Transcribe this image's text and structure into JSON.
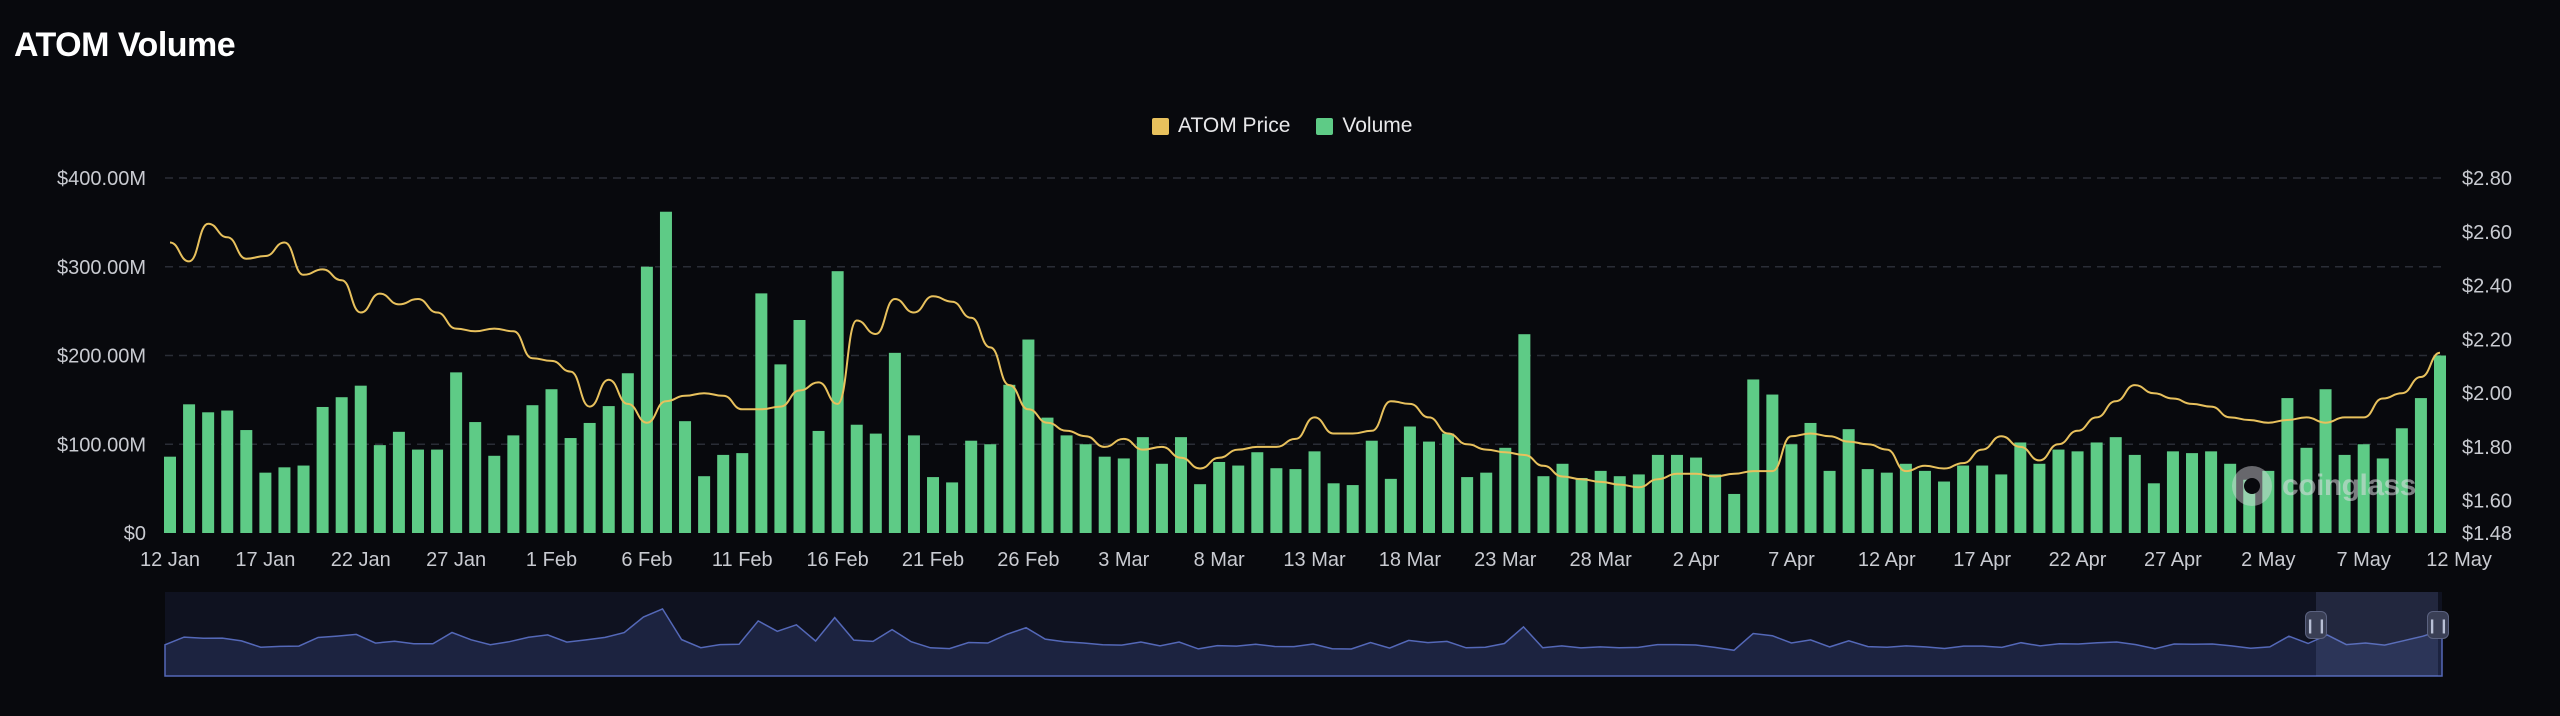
{
  "page": {
    "title": "ATOM Volume"
  },
  "legend": {
    "price": {
      "label": "ATOM Price",
      "color": "#e8c15d"
    },
    "volume": {
      "label": "Volume",
      "color": "#5ecb86"
    }
  },
  "watermark": "coinglass",
  "chart_data": {
    "type": "bar",
    "left_axis": {
      "ticks": [
        "$0",
        "$100.00M",
        "$200.00M",
        "$300.00M",
        "$400.00M"
      ],
      "ylim": [
        0,
        400
      ]
    },
    "right_axis": {
      "ticks": [
        "$1.48",
        "$1.60",
        "$1.80",
        "$2.00",
        "$2.20",
        "$2.40",
        "$2.60",
        "$2.80"
      ],
      "ylim": [
        1.48,
        2.8
      ]
    },
    "x_ticks": [
      "12 Jan",
      "17 Jan",
      "22 Jan",
      "27 Jan",
      "1 Feb",
      "6 Feb",
      "11 Feb",
      "16 Feb",
      "21 Feb",
      "26 Feb",
      "3 Mar",
      "8 Mar",
      "13 Mar",
      "18 Mar",
      "23 Mar",
      "28 Mar",
      "2 Apr",
      "7 Apr",
      "12 Apr",
      "17 Apr",
      "22 Apr",
      "27 Apr",
      "2 May",
      "7 May",
      "12 May"
    ],
    "volume_unit": "M USD",
    "volume": [
      86,
      145,
      136,
      138,
      116,
      68,
      74,
      76,
      142,
      153,
      166,
      99,
      114,
      94,
      94,
      181,
      125,
      87,
      110,
      144,
      162,
      107,
      124,
      143,
      180,
      300,
      362,
      126,
      64,
      88,
      90,
      270,
      190,
      240,
      115,
      295,
      122,
      112,
      203,
      110,
      63,
      57,
      104,
      100,
      167,
      218,
      130,
      110,
      100,
      86,
      84,
      108,
      78,
      108,
      55,
      80,
      76,
      91,
      73,
      72,
      92,
      56,
      54,
      104,
      61,
      120,
      103,
      112,
      63,
      68,
      96,
      224,
      64,
      78,
      62,
      70,
      64,
      66,
      88,
      88,
      85,
      66,
      44,
      173,
      156,
      100,
      124,
      70,
      117,
      72,
      68,
      78,
      70,
      58,
      76,
      76,
      66,
      102,
      78,
      94,
      92,
      102,
      108,
      88,
      56,
      92,
      90,
      92,
      78,
      60,
      70,
      152,
      96,
      162,
      88,
      100,
      84,
      118,
      152,
      200
    ],
    "price": [
      2.56,
      2.49,
      2.63,
      2.58,
      2.5,
      2.51,
      2.56,
      2.44,
      2.46,
      2.42,
      2.3,
      2.37,
      2.33,
      2.35,
      2.3,
      2.24,
      2.23,
      2.24,
      2.23,
      2.13,
      2.12,
      2.08,
      1.95,
      2.05,
      1.96,
      1.89,
      1.97,
      1.99,
      2.0,
      1.99,
      1.94,
      1.94,
      1.95,
      2.01,
      2.04,
      1.96,
      2.27,
      2.22,
      2.35,
      2.3,
      2.36,
      2.34,
      2.28,
      2.17,
      2.03,
      1.94,
      1.89,
      1.86,
      1.84,
      1.8,
      1.83,
      1.79,
      1.8,
      1.76,
      1.72,
      1.76,
      1.79,
      1.8,
      1.8,
      1.83,
      1.91,
      1.85,
      1.85,
      1.86,
      1.97,
      1.96,
      1.91,
      1.85,
      1.81,
      1.79,
      1.78,
      1.77,
      1.73,
      1.69,
      1.68,
      1.67,
      1.66,
      1.65,
      1.68,
      1.7,
      1.7,
      1.69,
      1.7,
      1.71,
      1.71,
      1.84,
      1.85,
      1.84,
      1.82,
      1.81,
      1.79,
      1.71,
      1.73,
      1.72,
      1.74,
      1.79,
      1.84,
      1.8,
      1.75,
      1.81,
      1.86,
      1.91,
      1.97,
      2.03,
      2.0,
      1.98,
      1.96,
      1.95,
      1.91,
      1.9,
      1.89,
      1.9,
      1.91,
      1.89,
      1.91,
      1.91,
      1.98,
      2.0,
      2.06,
      2.15
    ]
  }
}
